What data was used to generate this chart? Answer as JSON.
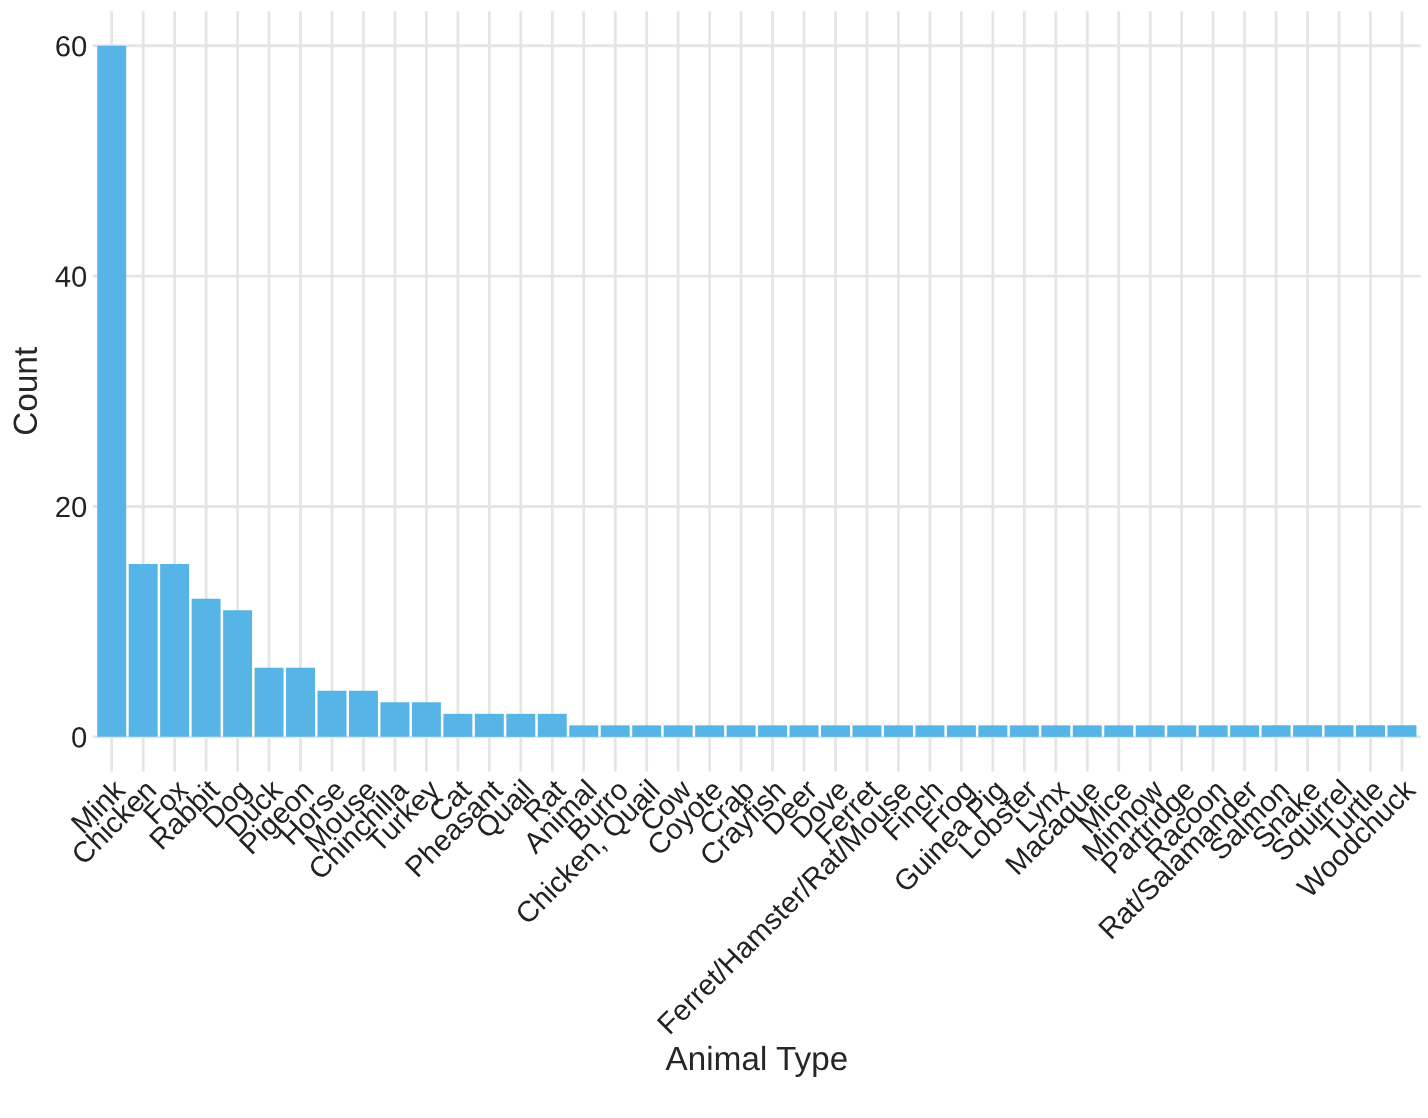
{
  "chart_data": {
    "type": "bar",
    "xlabel": "Animal Type",
    "ylabel": "Count",
    "categories": [
      "Mink",
      "Chicken",
      "Fox",
      "Rabbit",
      "Dog",
      "Duck",
      "Pigeon",
      "Horse",
      "Mouse",
      "Chinchilla",
      "Turkey",
      "Cat",
      "Pheasant",
      "Quail",
      "Rat",
      "Animal",
      "Burro",
      "Chicken, Quail",
      "Cow",
      "Coyote",
      "Crab",
      "Crayfish",
      "Deer",
      "Dove",
      "Ferret",
      "Ferret/Hamster/Rat/Mouse",
      "Finch",
      "Frog",
      "Guinea Pig",
      "Lobster",
      "Lynx",
      "Macaque",
      "Mice",
      "Minnow",
      "Partridge",
      "Racoon",
      "Rat/Salamander",
      "Salmon",
      "Snake",
      "Squirrel",
      "Turtle",
      "Woodchuck"
    ],
    "values": [
      60,
      15,
      15,
      12,
      11,
      6,
      6,
      4,
      4,
      3,
      3,
      2,
      2,
      2,
      2,
      1,
      1,
      1,
      1,
      1,
      1,
      1,
      1,
      1,
      1,
      1,
      1,
      1,
      1,
      1,
      1,
      1,
      1,
      1,
      1,
      1,
      1,
      1,
      1,
      1,
      1,
      1
    ],
    "color": "#56b4e6",
    "ylim": [
      -3,
      63
    ],
    "yticks": [
      0,
      20,
      40,
      60
    ],
    "grid": true
  }
}
